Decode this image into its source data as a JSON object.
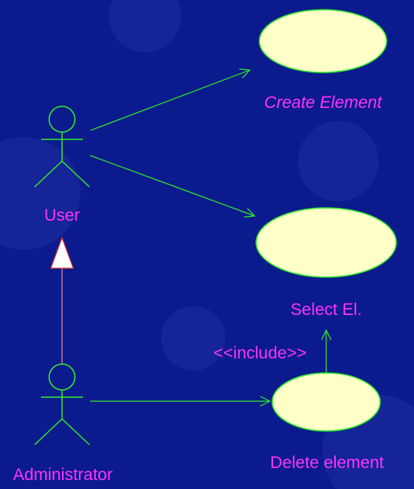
{
  "colors": {
    "background": "#0b1a8c",
    "background_shape": "#1f2e9e",
    "line": "#2ee82e",
    "use_case_fill": "#ffffc8",
    "label": "#ff33ff",
    "generalization": "#ff8080"
  },
  "actors": [
    {
      "id": "user",
      "name": "User"
    },
    {
      "id": "admin",
      "name": "Administrator"
    }
  ],
  "use_cases": [
    {
      "id": "create",
      "name": "Create Element",
      "italic": true
    },
    {
      "id": "select",
      "name": "Select El.",
      "italic": false
    },
    {
      "id": "delete",
      "name": "Delete element",
      "italic": false
    }
  ],
  "relationships": [
    {
      "from": "user",
      "to": "create",
      "type": "association"
    },
    {
      "from": "user",
      "to": "select",
      "type": "association"
    },
    {
      "from": "admin",
      "to": "delete",
      "type": "association"
    },
    {
      "from": "delete",
      "to": "select",
      "type": "include",
      "label": "<<include>>"
    },
    {
      "from": "admin",
      "to": "user",
      "type": "generalization"
    }
  ]
}
